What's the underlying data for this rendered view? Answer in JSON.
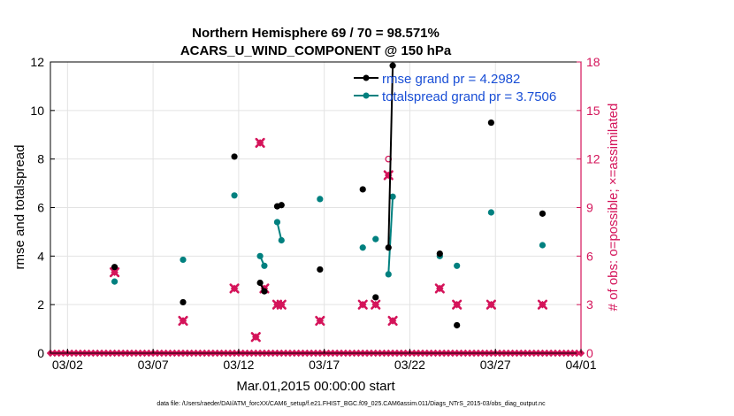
{
  "title_line1": "Northern Hemisphere 69 / 70 = 98.571%",
  "title_line2": "ACARS_U_WIND_COMPONENT @ 150 hPa",
  "xlabel": "Mar.01,2015 00:00:00 start",
  "ylabel_left": "rmse and totalspread",
  "ylabel_right": "# of obs: o=possible; ×=assimilated",
  "footnote": "data file: /Users/raeder/DAI/ATM_forcXX/CAM6_setup/f.e21.FHIST_BGC.f09_025.CAM6assim.011/Diags_NTrS_2015-03/obs_diag_output.nc",
  "legend": [
    "rmse grand pr = 4.2982",
    "totalspread grand pr = 3.7506"
  ],
  "colors": {
    "rmse": "#000000",
    "spread": "#00807f",
    "obs": "#d4145a",
    "legend_text": "#1a4fd6"
  },
  "chart_data": {
    "type": "line",
    "x_unit": "days since Mar.01,2015 00:00:00",
    "xlim": [
      0,
      31
    ],
    "x_ticks": [
      1,
      6,
      11,
      16,
      21,
      26,
      31
    ],
    "x_tick_labels": [
      "03/02",
      "03/07",
      "03/12",
      "03/17",
      "03/22",
      "03/27",
      "04/01"
    ],
    "ylim_left": [
      0,
      12
    ],
    "y_ticks_left": [
      0,
      2,
      4,
      6,
      8,
      10,
      12
    ],
    "ylim_right": [
      0,
      18
    ],
    "y_ticks_right": [
      0,
      3,
      6,
      9,
      12,
      15,
      18
    ],
    "series": [
      {
        "name": "rmse grand pr = 4.2982",
        "axis": "left",
        "marker": "circle",
        "segments": [
          [
            [
              3.75,
              3.55
            ]
          ],
          [
            [
              7.75,
              2.1
            ]
          ],
          [
            [
              10.75,
              8.1
            ]
          ],
          [
            [
              12.25,
              2.9
            ],
            [
              12.5,
              2.55
            ]
          ],
          [
            [
              13.25,
              6.05
            ],
            [
              13.5,
              6.1
            ]
          ],
          [
            [
              15.75,
              3.45
            ]
          ],
          [
            [
              18.25,
              6.75
            ]
          ],
          [
            [
              19.0,
              2.3
            ]
          ],
          [
            [
              19.75,
              4.35
            ],
            [
              20.0,
              11.85
            ]
          ],
          [
            [
              22.75,
              4.1
            ]
          ],
          [
            [
              23.75,
              1.15
            ]
          ],
          [
            [
              25.75,
              9.5
            ]
          ],
          [
            [
              28.75,
              5.75
            ]
          ]
        ]
      },
      {
        "name": "totalspread grand pr = 3.7506",
        "axis": "left",
        "marker": "circle",
        "segments": [
          [
            [
              3.75,
              2.95
            ]
          ],
          [
            [
              7.75,
              3.85
            ]
          ],
          [
            [
              10.75,
              6.5
            ]
          ],
          [
            [
              12.25,
              4.0
            ],
            [
              12.5,
              3.6
            ]
          ],
          [
            [
              13.25,
              5.4
            ],
            [
              13.5,
              4.65
            ]
          ],
          [
            [
              15.75,
              6.35
            ]
          ],
          [
            [
              18.25,
              4.35
            ]
          ],
          [
            [
              19.0,
              4.7
            ]
          ],
          [
            [
              19.75,
              3.25
            ],
            [
              20.0,
              6.45
            ]
          ],
          [
            [
              22.75,
              4.0
            ]
          ],
          [
            [
              23.75,
              3.6
            ]
          ],
          [
            [
              25.75,
              5.8
            ]
          ],
          [
            [
              28.75,
              4.45
            ]
          ]
        ]
      }
    ],
    "obs_assimilated": {
      "axis": "right",
      "marker": "x",
      "points": [
        [
          3.75,
          5
        ],
        [
          7.75,
          2
        ],
        [
          10.75,
          4
        ],
        [
          12.0,
          1
        ],
        [
          12.25,
          13
        ],
        [
          12.5,
          4
        ],
        [
          13.25,
          3
        ],
        [
          13.5,
          3
        ],
        [
          15.75,
          2
        ],
        [
          18.25,
          3
        ],
        [
          19.0,
          3
        ],
        [
          19.75,
          11
        ],
        [
          20.0,
          2
        ],
        [
          22.75,
          4
        ],
        [
          23.75,
          3
        ],
        [
          25.75,
          3
        ],
        [
          28.75,
          3
        ]
      ]
    },
    "obs_possible": {
      "axis": "right",
      "marker": "o",
      "points": [
        [
          19.75,
          12
        ]
      ]
    },
    "zero_obs_markers": {
      "x_start": 0,
      "x_end": 31,
      "spacing": 0.25,
      "value": 0
    }
  }
}
